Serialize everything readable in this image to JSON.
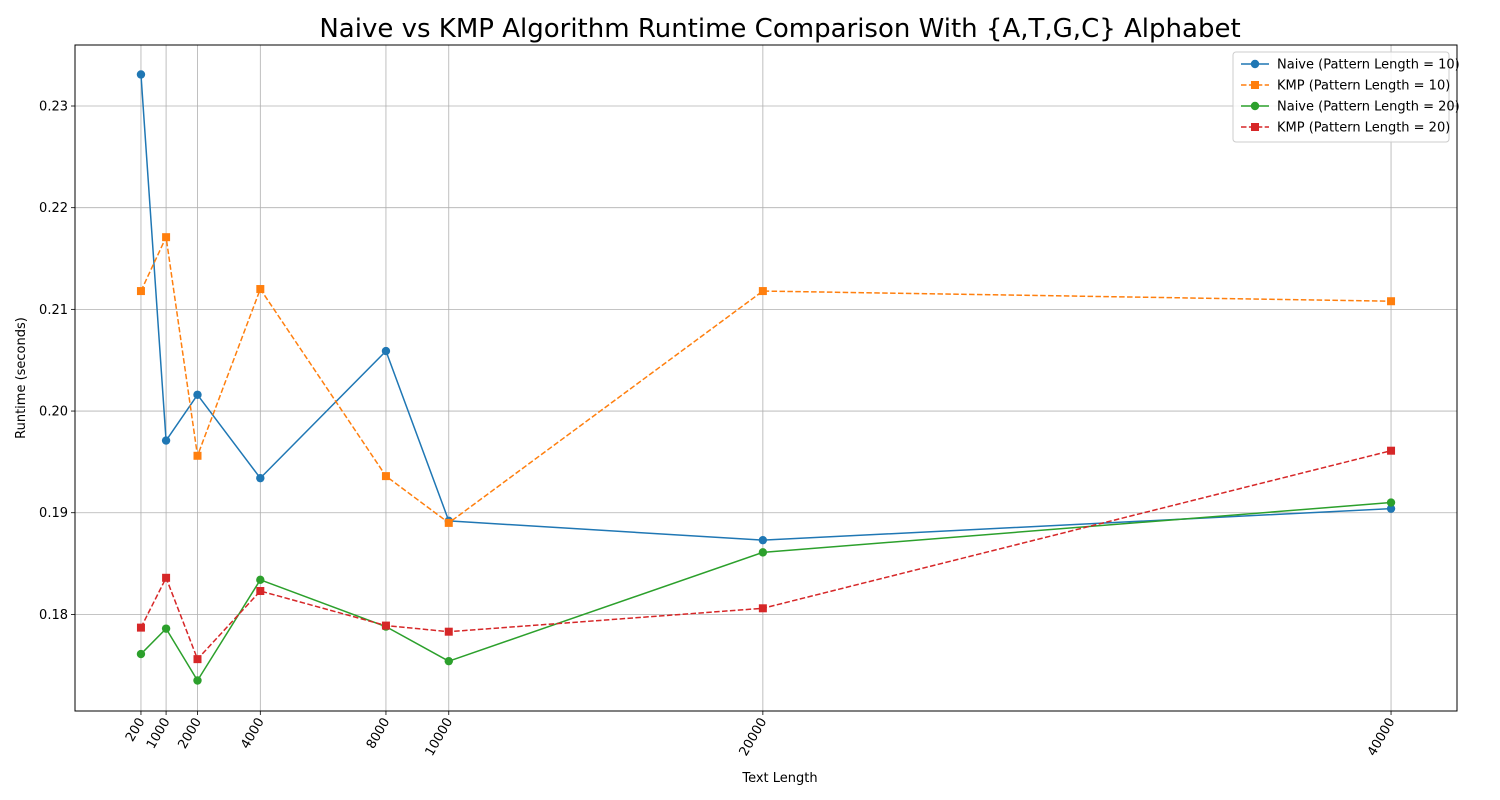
{
  "chart_data": {
    "type": "line",
    "title": "Naive vs KMP Algorithm Runtime Comparison With {A,T,G,C} Alphabet",
    "xlabel": "Text Length",
    "ylabel": "Runtime (seconds)",
    "x": [
      200,
      1000,
      2000,
      4000,
      8000,
      10000,
      20000,
      40000
    ],
    "x_tick_labels": [
      "200",
      "1000",
      "2000",
      "4000",
      "8000",
      "10000",
      "20000",
      "40000"
    ],
    "y_ticks": [
      0.18,
      0.19,
      0.2,
      0.21,
      0.22,
      0.23
    ],
    "y_tick_labels": [
      "0.18",
      "0.19",
      "0.20",
      "0.21",
      "0.22",
      "0.23"
    ],
    "xlim": [
      -1900,
      42100
    ],
    "ylim": [
      0.1705,
      0.236
    ],
    "grid": true,
    "legend_position": "top-right",
    "series": [
      {
        "name": "Naive (Pattern Length = 10)",
        "color": "#1f77b4",
        "line_style": "solid",
        "marker": "circle",
        "values": [
          0.2331,
          0.1971,
          0.2016,
          0.1934,
          0.2059,
          0.1892,
          0.1873,
          0.1904
        ]
      },
      {
        "name": "KMP (Pattern Length = 10)",
        "color": "#ff7f0e",
        "line_style": "dashed",
        "marker": "square",
        "values": [
          0.2118,
          0.2171,
          0.1956,
          0.212,
          0.1936,
          0.189,
          0.2118,
          0.2108
        ]
      },
      {
        "name": "Naive (Pattern Length = 20)",
        "color": "#2ca02c",
        "line_style": "solid",
        "marker": "circle",
        "values": [
          0.1761,
          0.1786,
          0.1735,
          0.1834,
          0.1788,
          0.1754,
          0.1861,
          0.191
        ]
      },
      {
        "name": "KMP (Pattern Length = 20)",
        "color": "#d62728",
        "line_style": "dashed",
        "marker": "square",
        "values": [
          0.1787,
          0.1836,
          0.1756,
          0.1823,
          0.1789,
          0.1783,
          0.1806,
          0.1961
        ]
      }
    ]
  }
}
